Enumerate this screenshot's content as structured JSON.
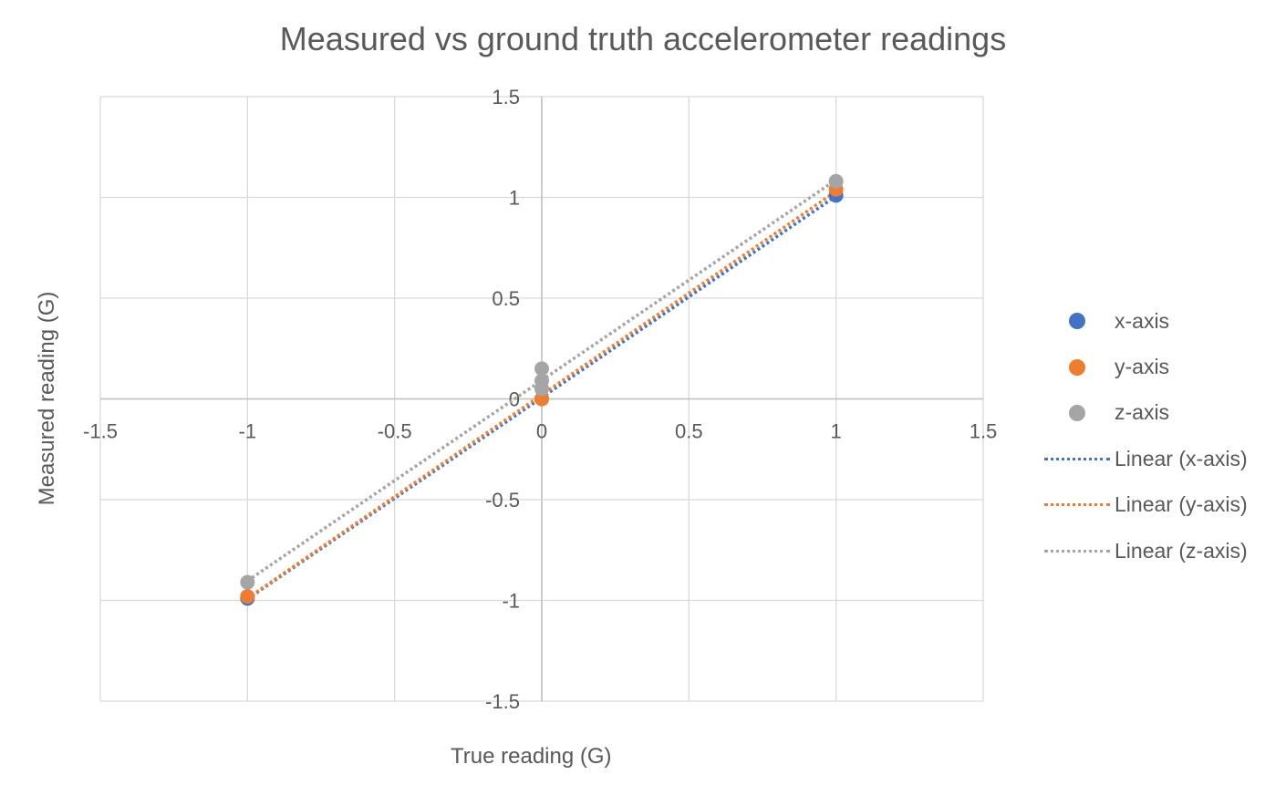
{
  "chart_data": {
    "type": "scatter",
    "title": "Measured vs ground truth accelerometer readings",
    "xlabel": "True reading (G)",
    "ylabel": "Measured reading (G)",
    "xlim": [
      -1.5,
      1.5
    ],
    "ylim": [
      -1.5,
      1.5
    ],
    "x_ticks": [
      -1.5,
      -1,
      -0.5,
      0,
      0.5,
      1,
      1.5
    ],
    "y_ticks": [
      -1.5,
      -1,
      -0.5,
      0,
      0.5,
      1,
      1.5
    ],
    "x_tick_labels": [
      "-1.5",
      "-1",
      "-0.5",
      "0",
      "0.5",
      "1",
      "1.5"
    ],
    "y_tick_labels": [
      "-1.5",
      "-1",
      "-0.5",
      "0",
      "0.5",
      "1",
      "1.5"
    ],
    "grid": true,
    "legend_position": "right",
    "series": [
      {
        "name": "x-axis",
        "color": "#4472C4",
        "x": [
          -1,
          0,
          1
        ],
        "y": [
          -0.99,
          0.0,
          1.01
        ]
      },
      {
        "name": "y-axis",
        "color": "#ED7D31",
        "x": [
          -1,
          0,
          1
        ],
        "y": [
          -0.98,
          0.0,
          1.04
        ]
      },
      {
        "name": "z-axis",
        "color": "#A5A5A5",
        "x": [
          -1,
          0,
          0,
          0,
          1
        ],
        "y": [
          -0.91,
          0.05,
          0.09,
          0.15,
          1.08
        ]
      }
    ],
    "trendlines": [
      {
        "name": "Linear (x-axis)",
        "series": "x-axis",
        "color": "#4472C4",
        "style": "dotted"
      },
      {
        "name": "Linear (y-axis)",
        "series": "y-axis",
        "color": "#ED7D31",
        "style": "dotted"
      },
      {
        "name": "Linear (z-axis)",
        "series": "z-axis",
        "color": "#A5A5A5",
        "style": "dotted"
      }
    ]
  }
}
